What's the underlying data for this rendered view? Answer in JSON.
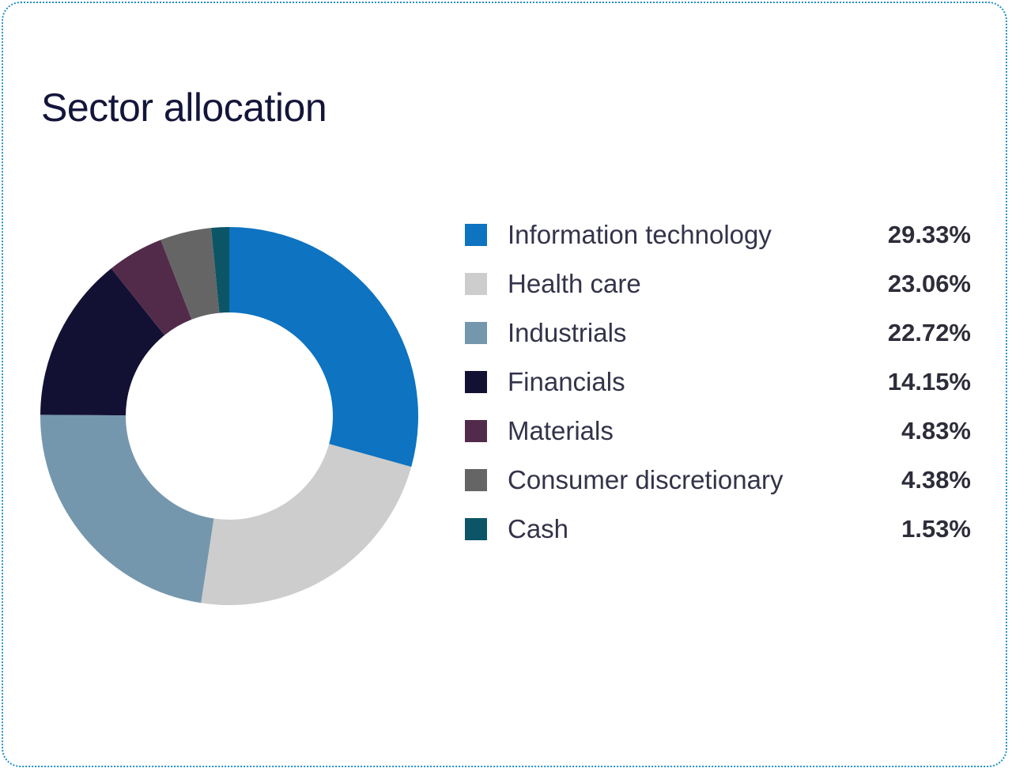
{
  "title": "Sector allocation",
  "chart_data": {
    "type": "pie",
    "title": "Sector allocation",
    "donut": true,
    "legend_placement": "right",
    "categories": [
      "Information technology",
      "Health care",
      "Industrials",
      "Financials",
      "Materials",
      "Consumer discretionary",
      "Cash"
    ],
    "values": [
      29.33,
      23.06,
      22.72,
      14.15,
      4.83,
      4.38,
      1.53
    ],
    "value_labels": [
      "29.33%",
      "23.06%",
      "22.72%",
      "14.15%",
      "4.83%",
      "4.38%",
      "1.53%"
    ],
    "colors": [
      "#0e73c0",
      "#cdcdcd",
      "#7597ad",
      "#131133",
      "#532b4a",
      "#656565",
      "#0c5566"
    ]
  }
}
